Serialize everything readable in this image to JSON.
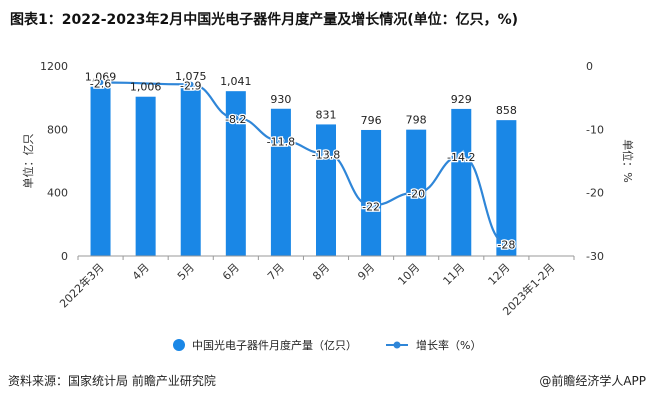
{
  "title": "图表1：2022-2023年2月中国光电子器件月度产量及增长情况(单位：亿只，%)",
  "source": "资料来源：国家统计局 前瞻产业研究院",
  "credit": "@前瞻经济学人APP",
  "colors": {
    "bar": "#1a87e6",
    "line": "#2f86d8"
  },
  "chart_data": {
    "type": "bar",
    "categories": [
      "2022年3月",
      "4月",
      "5月",
      "6月",
      "7月",
      "8月",
      "9月",
      "10月",
      "11月",
      "12月",
      "2023年1-2月"
    ],
    "ylabel": "单位：亿只",
    "y2label": "单位：%",
    "ylim": [
      0,
      1200
    ],
    "y2lim": [
      -30,
      0
    ],
    "yticks": [
      0,
      400,
      800,
      1200
    ],
    "y2ticks": [
      -30,
      -20,
      -10,
      0
    ],
    "series": [
      {
        "name": "中国光电子器件月度产量（亿只）",
        "type": "bar",
        "axis": "left",
        "values": [
          1069,
          1006,
          1075,
          1041,
          930,
          831,
          796,
          798,
          929,
          858,
          null
        ],
        "labels": [
          "1,069",
          "1,006",
          "1,075",
          "1,041",
          "930",
          "831",
          "796",
          "798",
          "929",
          "858",
          ""
        ]
      },
      {
        "name": "增长率（%）",
        "type": "line",
        "axis": "right",
        "values": [
          -2.6,
          null,
          -2.9,
          -8.2,
          -11.8,
          -13.8,
          -22,
          -20,
          -14.2,
          -28,
          null
        ],
        "labels": [
          "-2.6",
          "",
          "-2.9",
          "-8.2",
          "-11.8",
          "-13.8",
          "-22",
          "-20",
          "-14.2",
          "-28",
          ""
        ]
      }
    ],
    "legend_position": "bottom"
  }
}
